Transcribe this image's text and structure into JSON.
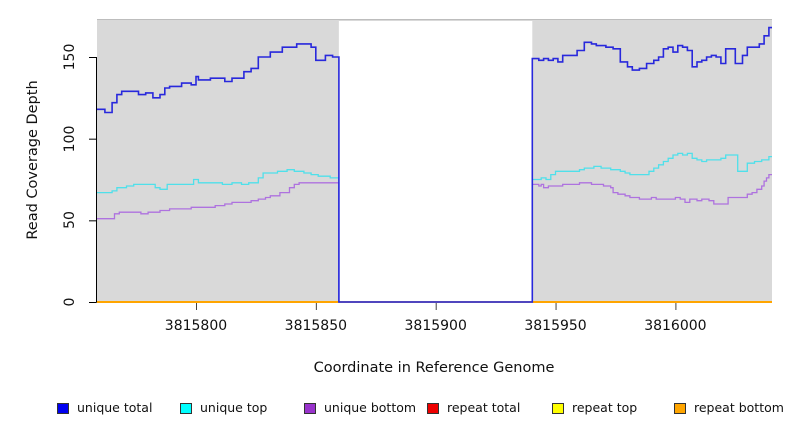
{
  "chart_data": {
    "type": "line",
    "subtype": "step-coverage-plot",
    "title": "",
    "xlabel": "Coordinate in Reference Genome",
    "ylabel": "Read Coverage Depth",
    "xlim": [
      3815758.7,
      3816040.3
    ],
    "ylim": [
      0,
      173
    ],
    "x_ticks": [
      "3815800",
      "3815850",
      "3815900",
      "3815950",
      "3816000"
    ],
    "x_tick_values": [
      3815800,
      3815850,
      3815900,
      3815950,
      3816000
    ],
    "y_ticks": [
      "0",
      "50",
      "100",
      "150"
    ],
    "y_tick_values": [
      0,
      50,
      100,
      150
    ],
    "grid": false,
    "panel_bg": "#d9d9d9",
    "panel_top_edge": "#bdbdbd",
    "gap_region": {
      "start": 3815859.6,
      "end": 3815940.3,
      "fill": "#ffffff",
      "value_in_gap": 0
    },
    "legend_position": "bottom",
    "series": [
      {
        "name": "repeat bottom",
        "color": "#FFA500",
        "width": 2,
        "points": [
          [
            3815758.7,
            0
          ],
          [
            3816040.3,
            0
          ]
        ]
      },
      {
        "name": "repeat top",
        "color": "#FFFF00",
        "width": 1.3,
        "points": []
      },
      {
        "name": "repeat total",
        "color": "#EE0000",
        "width": 1.3,
        "points": []
      },
      {
        "name": "unique top",
        "color": "#4FE0EA",
        "width": 1.3,
        "points": [
          [
            3815758.7,
            67
          ],
          [
            3815765,
            68
          ],
          [
            3815767,
            70
          ],
          [
            3815771,
            71
          ],
          [
            3815774,
            72
          ],
          [
            3815780,
            72
          ],
          [
            3815783,
            70
          ],
          [
            3815785,
            69
          ],
          [
            3815788,
            72
          ],
          [
            3815797,
            72
          ],
          [
            3815799,
            75
          ],
          [
            3815801,
            73
          ],
          [
            3815808,
            73
          ],
          [
            3815811,
            72
          ],
          [
            3815815,
            73
          ],
          [
            3815819,
            72
          ],
          [
            3815822,
            73
          ],
          [
            3815826,
            76
          ],
          [
            3815828,
            79
          ],
          [
            3815834,
            80
          ],
          [
            3815838,
            81
          ],
          [
            3815841,
            80
          ],
          [
            3815845,
            79
          ],
          [
            3815848,
            78
          ],
          [
            3815851,
            77
          ],
          [
            3815856,
            76
          ],
          [
            3815859.6,
            0
          ],
          [
            3815940.3,
            75
          ],
          [
            3815944,
            76
          ],
          [
            3815946,
            75
          ],
          [
            3815948,
            78
          ],
          [
            3815950,
            80
          ],
          [
            3815958,
            80
          ],
          [
            3815960,
            81
          ],
          [
            3815962,
            82
          ],
          [
            3815966,
            83
          ],
          [
            3815969,
            82
          ],
          [
            3815973,
            81
          ],
          [
            3815977,
            80
          ],
          [
            3815979,
            79
          ],
          [
            3815981,
            78
          ],
          [
            3815987,
            78
          ],
          [
            3815989,
            80
          ],
          [
            3815991,
            82
          ],
          [
            3815993,
            84
          ],
          [
            3815995,
            86
          ],
          [
            3815997,
            88
          ],
          [
            3815999,
            90
          ],
          [
            3816001,
            91
          ],
          [
            3816003,
            90
          ],
          [
            3816005,
            91
          ],
          [
            3816007,
            88
          ],
          [
            3816009,
            87
          ],
          [
            3816011,
            86
          ],
          [
            3816013,
            87
          ],
          [
            3816017,
            87
          ],
          [
            3816019,
            88
          ],
          [
            3816021,
            90
          ],
          [
            3816026,
            80
          ],
          [
            3816030,
            85
          ],
          [
            3816033,
            86
          ],
          [
            3816036,
            87
          ],
          [
            3816039,
            89
          ]
        ]
      },
      {
        "name": "unique bottom",
        "color": "#AE72DF",
        "width": 1.3,
        "points": [
          [
            3815758.7,
            51
          ],
          [
            3815765,
            51
          ],
          [
            3815766,
            54
          ],
          [
            3815768,
            55
          ],
          [
            3815773,
            55
          ],
          [
            3815777,
            54
          ],
          [
            3815780,
            55
          ],
          [
            3815785,
            56
          ],
          [
            3815789,
            57
          ],
          [
            3815794,
            57
          ],
          [
            3815798,
            58
          ],
          [
            3815804,
            58
          ],
          [
            3815808,
            59
          ],
          [
            3815812,
            60
          ],
          [
            3815815,
            61
          ],
          [
            3815819,
            61
          ],
          [
            3815823,
            62
          ],
          [
            3815826,
            63
          ],
          [
            3815829,
            64
          ],
          [
            3815831,
            65
          ],
          [
            3815835,
            67
          ],
          [
            3815839,
            70
          ],
          [
            3815841,
            72
          ],
          [
            3815843,
            73
          ],
          [
            3815859.6,
            0
          ],
          [
            3815940.3,
            72
          ],
          [
            3815943,
            71
          ],
          [
            3815944,
            72
          ],
          [
            3815945,
            70
          ],
          [
            3815947,
            71
          ],
          [
            3815951,
            71
          ],
          [
            3815953,
            72
          ],
          [
            3815958,
            72
          ],
          [
            3815960,
            73
          ],
          [
            3815965,
            72
          ],
          [
            3815968,
            72
          ],
          [
            3815970,
            71
          ],
          [
            3815973,
            70
          ],
          [
            3815974,
            67
          ],
          [
            3815976,
            66
          ],
          [
            3815979,
            65
          ],
          [
            3815981,
            64
          ],
          [
            3815985,
            63
          ],
          [
            3815988,
            63
          ],
          [
            3815990,
            64
          ],
          [
            3815992,
            63
          ],
          [
            3816000,
            64
          ],
          [
            3816002,
            63
          ],
          [
            3816004,
            61
          ],
          [
            3816006,
            63
          ],
          [
            3816009,
            62
          ],
          [
            3816011,
            63
          ],
          [
            3816014,
            62
          ],
          [
            3816016,
            60
          ],
          [
            3816020,
            60
          ],
          [
            3816022,
            64
          ],
          [
            3816029,
            64
          ],
          [
            3816030,
            66
          ],
          [
            3816032,
            67
          ],
          [
            3816034,
            69
          ],
          [
            3816036,
            71
          ],
          [
            3816037,
            74
          ],
          [
            3816038,
            76
          ],
          [
            3816039,
            78
          ]
        ]
      },
      {
        "name": "unique total",
        "color": "#2828DC",
        "width": 1.6,
        "points": [
          [
            3815758.7,
            118
          ],
          [
            3815762,
            116
          ],
          [
            3815765,
            122
          ],
          [
            3815767,
            127
          ],
          [
            3815769,
            129
          ],
          [
            3815776,
            127
          ],
          [
            3815779,
            128
          ],
          [
            3815782,
            125
          ],
          [
            3815785,
            127
          ],
          [
            3815787,
            131
          ],
          [
            3815789,
            132
          ],
          [
            3815794,
            134
          ],
          [
            3815798,
            133
          ],
          [
            3815800,
            138
          ],
          [
            3815801,
            136
          ],
          [
            3815806,
            137
          ],
          [
            3815812,
            135
          ],
          [
            3815815,
            137
          ],
          [
            3815820,
            141
          ],
          [
            3815823,
            143
          ],
          [
            3815826,
            150
          ],
          [
            3815831,
            153
          ],
          [
            3815836,
            156
          ],
          [
            3815842,
            158
          ],
          [
            3815848,
            156
          ],
          [
            3815850,
            148
          ],
          [
            3815854,
            151
          ],
          [
            3815857,
            150
          ],
          [
            3815859.6,
            0
          ],
          [
            3815940.3,
            149
          ],
          [
            3815943,
            148
          ],
          [
            3815945,
            149
          ],
          [
            3815947,
            148
          ],
          [
            3815949,
            149
          ],
          [
            3815951,
            147
          ],
          [
            3815953,
            151
          ],
          [
            3815957,
            151
          ],
          [
            3815959,
            154
          ],
          [
            3815962,
            159
          ],
          [
            3815965,
            158
          ],
          [
            3815967,
            157
          ],
          [
            3815971,
            156
          ],
          [
            3815974,
            155
          ],
          [
            3815977,
            147
          ],
          [
            3815980,
            144
          ],
          [
            3815982,
            142
          ],
          [
            3815985,
            143
          ],
          [
            3815988,
            146
          ],
          [
            3815991,
            148
          ],
          [
            3815993,
            150
          ],
          [
            3815995,
            155
          ],
          [
            3815997,
            156
          ],
          [
            3815999,
            153
          ],
          [
            3816001,
            157
          ],
          [
            3816003,
            156
          ],
          [
            3816005,
            154
          ],
          [
            3816007,
            144
          ],
          [
            3816009,
            147
          ],
          [
            3816011,
            148
          ],
          [
            3816013,
            150
          ],
          [
            3816015,
            151
          ],
          [
            3816017,
            150
          ],
          [
            3816019,
            146
          ],
          [
            3816021,
            155
          ],
          [
            3816025,
            146
          ],
          [
            3816028,
            151
          ],
          [
            3816030,
            156
          ],
          [
            3816035,
            158
          ],
          [
            3816037,
            163
          ],
          [
            3816039,
            168
          ]
        ]
      }
    ],
    "legend": [
      {
        "label": "unique total",
        "color": "#0000F0"
      },
      {
        "label": "unique top",
        "color": "#00FFFF"
      },
      {
        "label": "unique bottom",
        "color": "#9933CC"
      },
      {
        "label": "repeat total",
        "color": "#EE0000"
      },
      {
        "label": "repeat top",
        "color": "#FFFF00"
      },
      {
        "label": "repeat bottom",
        "color": "#FFA500"
      }
    ]
  }
}
